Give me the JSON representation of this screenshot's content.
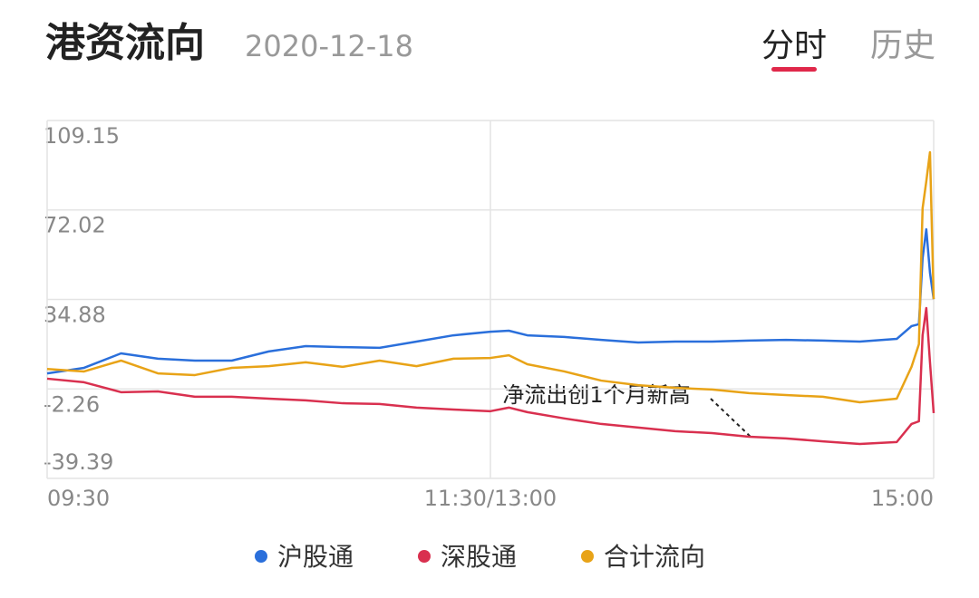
{
  "header": {
    "title": "港资流向",
    "date": "2020-12-18",
    "tabs": [
      "分时",
      "历史"
    ]
  },
  "chart_data": {
    "type": "line",
    "x": [
      0,
      10,
      20,
      30,
      40,
      50,
      60,
      70,
      80,
      90,
      100,
      110,
      120,
      125,
      130,
      140,
      150,
      160,
      170,
      180,
      190,
      200,
      210,
      220,
      230,
      234,
      236,
      237,
      238,
      239,
      240
    ],
    "xlim": [
      0,
      240
    ],
    "xticks": [
      {
        "value": 0,
        "label": "09:30"
      },
      {
        "value": 120,
        "label": "11:30/13:00"
      },
      {
        "value": 240,
        "label": "15:00"
      }
    ],
    "ylim": [
      -39.39,
      109.15
    ],
    "yticks": [
      109.15,
      72.02,
      34.88,
      -2.26,
      -39.39
    ],
    "grid": true,
    "series": [
      {
        "name": "沪股通",
        "color": "#2a6fdb",
        "values": [
          4.2,
          6.5,
          12.5,
          10.3,
          9.5,
          9.5,
          13.3,
          15.5,
          15.1,
          14.8,
          17.4,
          20,
          21.5,
          21.9,
          20,
          19.3,
          18.1,
          17,
          17.4,
          17.4,
          17.8,
          18.1,
          17.8,
          17.4,
          18.5,
          23.8,
          24.6,
          52,
          64,
          46,
          35
        ]
      },
      {
        "name": "深股通",
        "color": "#d9304f",
        "values": [
          2,
          0.5,
          -3.6,
          -3.3,
          -5.5,
          -5.5,
          -6.3,
          -7,
          -8.2,
          -8.5,
          -10,
          -10.8,
          -11.5,
          -10,
          -11.9,
          -14.5,
          -16.8,
          -18.3,
          -19.8,
          -20.6,
          -22.1,
          -22.8,
          -24,
          -25.1,
          -24.3,
          -16.8,
          -15.7,
          20,
          31.3,
          8.8,
          -12.3
        ]
      },
      {
        "name": "合计流向",
        "color": "#e8a317",
        "values": [
          6,
          5,
          9.5,
          4.2,
          3.5,
          6.5,
          7.2,
          8.8,
          6.9,
          9.5,
          7.2,
          10.3,
          10.6,
          11.7,
          8,
          5,
          1.2,
          -0.7,
          -1.8,
          -2.5,
          -4,
          -4.8,
          -5.5,
          -7.8,
          -6.3,
          6.9,
          16.3,
          72.7,
          83.9,
          96,
          35
        ]
      }
    ],
    "annotation": "净流出创1个月新高",
    "legend": "bottom"
  }
}
